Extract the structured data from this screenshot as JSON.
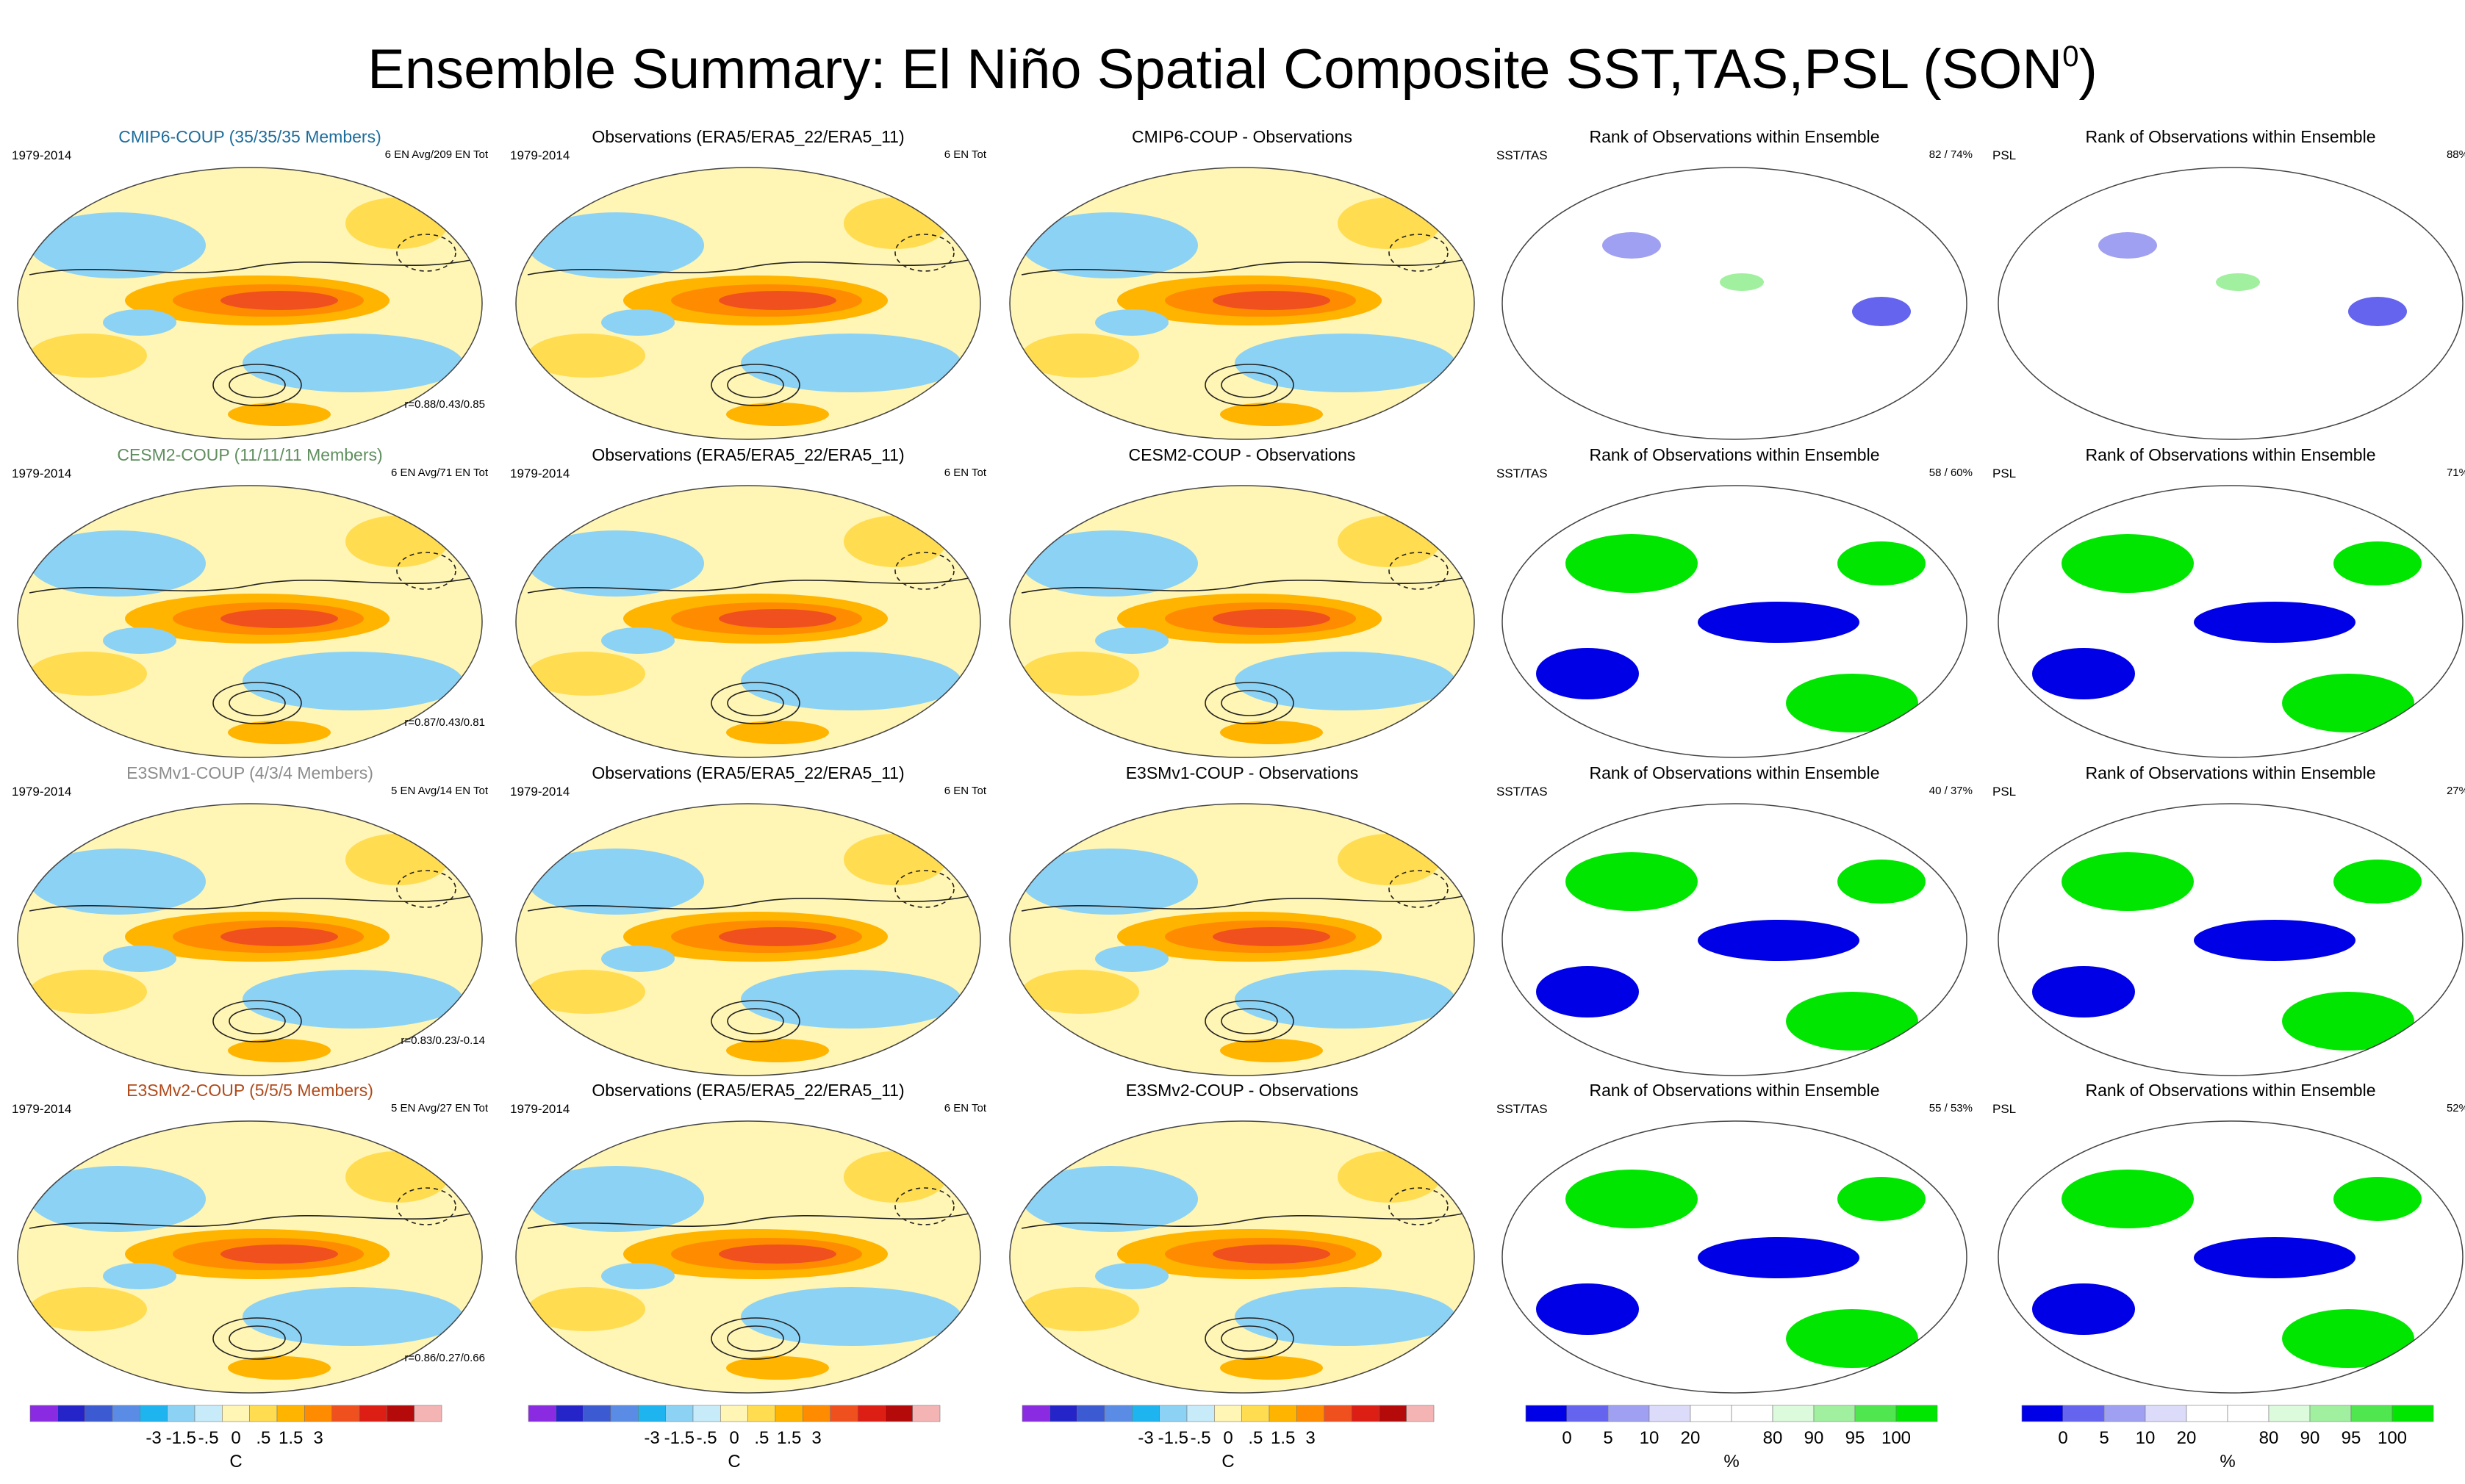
{
  "title": {
    "main": "Ensemble Summary: El Niño Spatial Composite SST,TAS,PSL (SON",
    "sup": "0",
    "close": ")"
  },
  "rows": [
    {
      "model": {
        "title": "CMIP6-COUP (35/35/35 Members)",
        "color": "#1c6d9c",
        "years": "1979-2014",
        "count": "6 EN Avg/209 EN Tot",
        "corr": "r=0.88/0.43/0.85"
      },
      "obs": {
        "title": "Observations (ERA5/ERA5_22/ERA5_11)",
        "years": "1979-2014",
        "count": "6 EN Tot"
      },
      "diff": {
        "title": "CMIP6-COUP - Observations"
      },
      "rank_sst": {
        "title": "Rank of Observations within Ensemble",
        "label": "SST/TAS",
        "pct": "82 /  74%"
      },
      "rank_psl": {
        "title": "Rank of Observations within Ensemble",
        "label": "PSL",
        "pct": "88%"
      }
    },
    {
      "model": {
        "title": "CESM2-COUP (11/11/11 Members)",
        "color": "#5e8e5e",
        "years": "1979-2014",
        "count": "6 EN Avg/71 EN Tot",
        "corr": "r=0.87/0.43/0.81"
      },
      "obs": {
        "title": "Observations (ERA5/ERA5_22/ERA5_11)",
        "years": "1979-2014",
        "count": "6 EN Tot"
      },
      "diff": {
        "title": "CESM2-COUP - Observations"
      },
      "rank_sst": {
        "title": "Rank of Observations within Ensemble",
        "label": "SST/TAS",
        "pct": "58 /  60%"
      },
      "rank_psl": {
        "title": "Rank of Observations within Ensemble",
        "label": "PSL",
        "pct": "71%"
      }
    },
    {
      "model": {
        "title": "E3SMv1-COUP (4/3/4 Members)",
        "color": "#8c8c8c",
        "years": "1979-2014",
        "count": "5 EN Avg/14 EN Tot",
        "corr": "r=0.83/0.23/-0.14"
      },
      "obs": {
        "title": "Observations (ERA5/ERA5_22/ERA5_11)",
        "years": "1979-2014",
        "count": "6 EN Tot"
      },
      "diff": {
        "title": "E3SMv1-COUP - Observations"
      },
      "rank_sst": {
        "title": "Rank of Observations within Ensemble",
        "label": "SST/TAS",
        "pct": "40 /  37%"
      },
      "rank_psl": {
        "title": "Rank of Observations within Ensemble",
        "label": "PSL",
        "pct": "27%"
      }
    },
    {
      "model": {
        "title": "E3SMv2-COUP (5/5/5 Members)",
        "color": "#b04a1a",
        "years": "1979-2014",
        "count": "5 EN Avg/27 EN Tot",
        "corr": "r=0.86/0.27/0.66"
      },
      "obs": {
        "title": "Observations (ERA5/ERA5_22/ERA5_11)",
        "years": "1979-2014",
        "count": "6 EN Tot"
      },
      "diff": {
        "title": "E3SMv2-COUP - Observations"
      },
      "rank_sst": {
        "title": "Rank of Observations within Ensemble",
        "label": "SST/TAS",
        "pct": "55 /  53%"
      },
      "rank_psl": {
        "title": "Rank of Observations within Ensemble",
        "label": "PSL",
        "pct": "52%"
      }
    }
  ],
  "colorbars": {
    "temp": {
      "ticks": [
        "-3",
        "-1.5",
        "-.5",
        "0",
        ".5",
        "1.5",
        "3"
      ],
      "unit": "C",
      "colors": [
        "#8a2be2",
        "#2424c8",
        "#3c5ad2",
        "#5a8ce6",
        "#1eb4f0",
        "#8cd2f5",
        "#c8ebfa",
        "#fff5b4",
        "#ffdc50",
        "#ffb400",
        "#ff8c00",
        "#f0501e",
        "#dc1e14",
        "#b40a0a",
        "#f5b4b4"
      ]
    },
    "rank": {
      "ticks": [
        "0",
        "5",
        "10",
        "20",
        "80",
        "90",
        "95",
        "100"
      ],
      "unit": "%",
      "colors": [
        "#0000e6",
        "#6464ee",
        "#a0a0f2",
        "#dcdcfa",
        "#ffffff",
        "#ffffff",
        "#dcfadc",
        "#a0f0a0",
        "#50e650",
        "#00e600"
      ]
    }
  }
}
